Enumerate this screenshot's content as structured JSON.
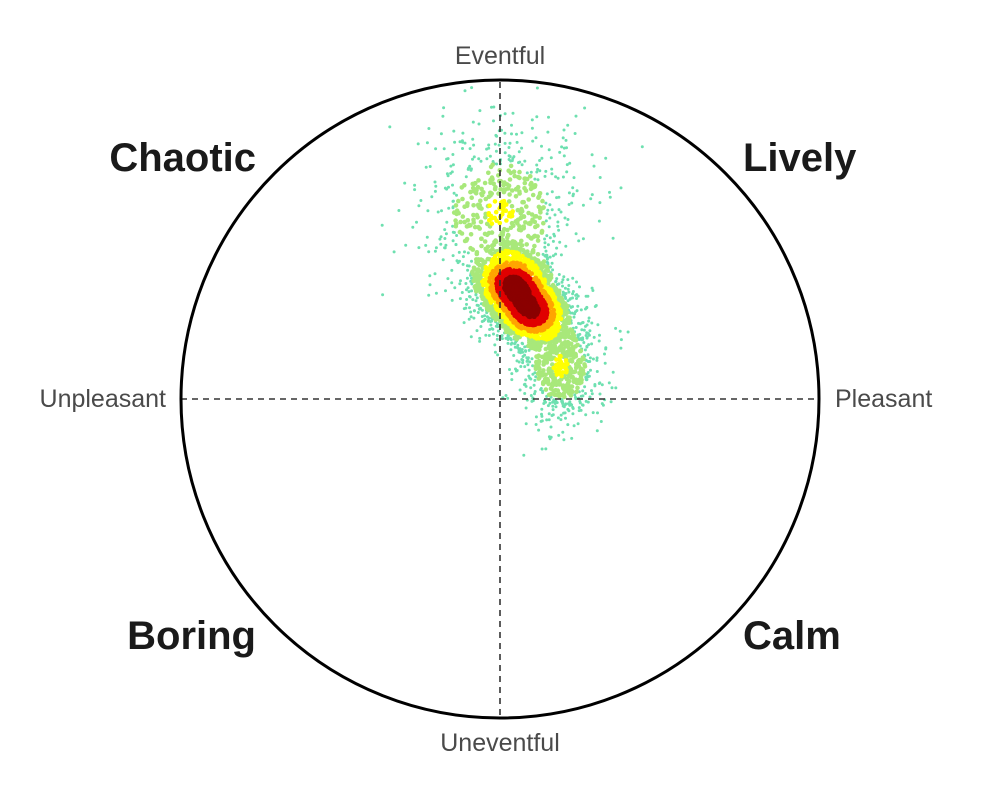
{
  "chart_data": {
    "type": "scatter",
    "xlim": [
      -1,
      1
    ],
    "ylim": [
      -1,
      1
    ],
    "grid": false,
    "axis_labels": {
      "top": "Eventful",
      "bottom": "Uneventful",
      "left": "Unpleasant",
      "right": "Pleasant"
    },
    "quadrant_labels": {
      "top_left": "Chaotic",
      "top_right": "Lively",
      "bottom_left": "Boring",
      "bottom_right": "Calm"
    },
    "density_colors": [
      "#6ee0b0",
      "#a8e87a",
      "#ffff00",
      "#ffa500",
      "#e00000",
      "#8b0000"
    ],
    "density_modes": [
      {
        "x": 0.04,
        "y": 0.36,
        "sx": 0.06,
        "sy": 0.05,
        "weight": 0.35
      },
      {
        "x": 0.1,
        "y": 0.27,
        "sx": 0.06,
        "sy": 0.05,
        "weight": 0.35
      },
      {
        "x": 0.0,
        "y": 0.58,
        "sx": 0.13,
        "sy": 0.14,
        "weight": 0.15
      },
      {
        "x": 0.19,
        "y": 0.1,
        "sx": 0.07,
        "sy": 0.09,
        "weight": 0.15
      }
    ]
  }
}
